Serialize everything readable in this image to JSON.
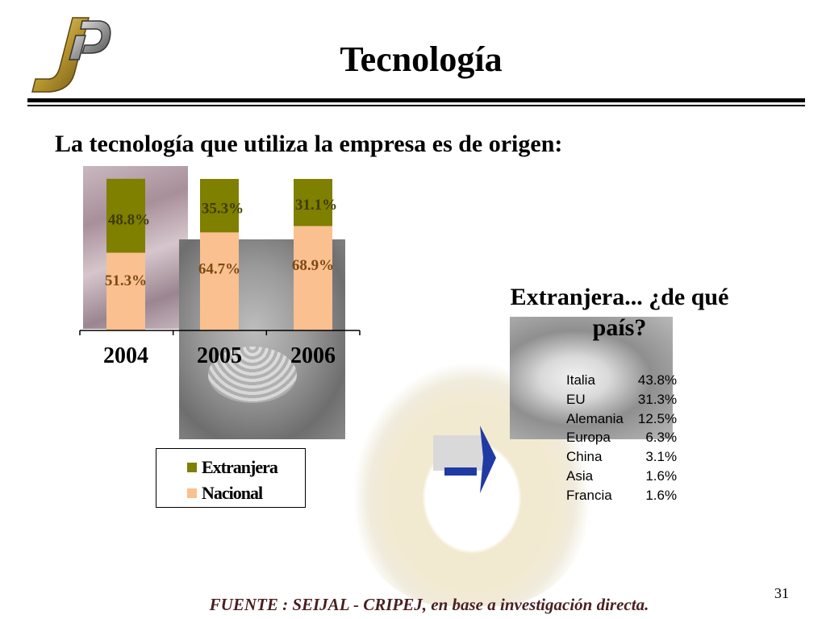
{
  "slide": {
    "title": "Tecnología",
    "subtitle": "La tecnología que utiliza la empresa es de origen:",
    "page_number": "31",
    "source": "FUENTE :  SEIJAL - CRIPEJ,  en base a investigación directa."
  },
  "logo": {
    "letters": "JP"
  },
  "chart_data": {
    "type": "bar",
    "stacked": true,
    "categories": [
      "2004",
      "2005",
      "2006"
    ],
    "series": [
      {
        "name": "Nacional",
        "values": [
          51.3,
          64.7,
          68.9
        ],
        "labels": [
          "51.3%",
          "64.7%",
          "68.9%"
        ],
        "color": "#fac090"
      },
      {
        "name": "Extranjera",
        "values": [
          48.8,
          35.3,
          31.1
        ],
        "labels": [
          "48.8%",
          "35.3%",
          "31.1%"
        ],
        "color": "#7f7f00"
      }
    ],
    "ylim": [
      0,
      100
    ],
    "legend_position": "bottom",
    "grid": false
  },
  "foreign": {
    "heading_line1": "Extranjera... ¿de qué",
    "heading_line2": "país?",
    "countries": [
      {
        "name": "Italia",
        "value": "43.8%"
      },
      {
        "name": "EU",
        "value": "31.3%"
      },
      {
        "name": "Alemania",
        "value": "12.5%"
      },
      {
        "name": "Europa",
        "value": "6.3%"
      },
      {
        "name": "China",
        "value": "3.1%"
      },
      {
        "name": "Asia",
        "value": "1.6%"
      },
      {
        "name": "Francia",
        "value": "1.6%"
      }
    ]
  },
  "colors": {
    "arrow": "#1f3ba3",
    "arrow_bg": "#d9d9d9",
    "source_text": "#4a1f1f"
  }
}
